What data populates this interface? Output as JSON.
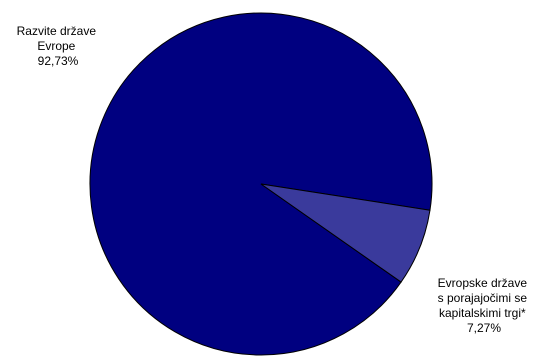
{
  "chart_data": {
    "type": "pie",
    "slices": [
      {
        "label_lines": [
          "Razvite države",
          "Evrope",
          "92,73%"
        ],
        "value": 92.73,
        "color": "#000080"
      },
      {
        "label_lines": [
          "Evropske države",
          "s porajajočimi se",
          "kapitalskimi trgi*",
          "7,27%"
        ],
        "value": 7.27,
        "color": "#3a3a9c"
      }
    ],
    "start_angle_deg": 35,
    "outline_color": "#000000"
  }
}
